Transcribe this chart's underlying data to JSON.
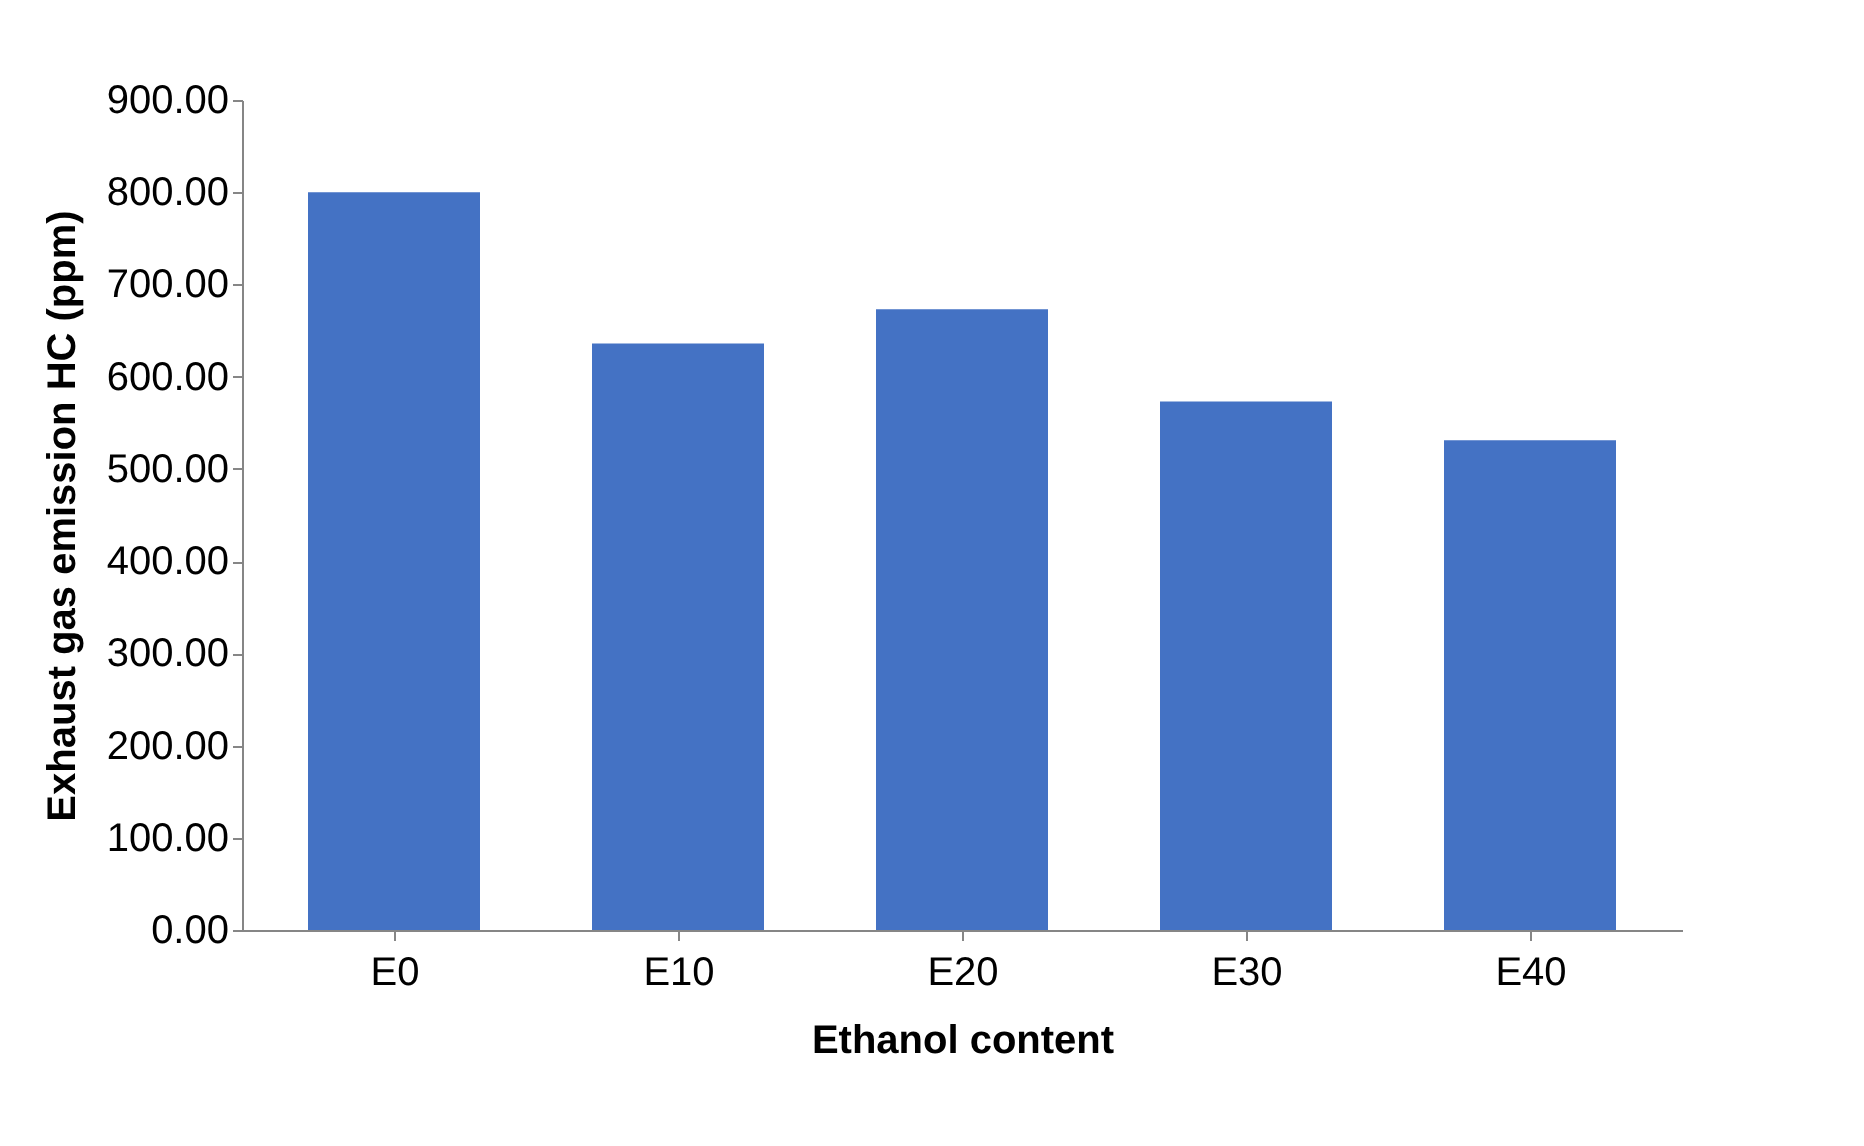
{
  "chart_data": {
    "type": "bar",
    "xlabel": "Ethanol content",
    "ylabel": "Exhaust gas emission HC (ppm)",
    "categories": [
      "E0",
      "E10",
      "E20",
      "E30",
      "E40"
    ],
    "values": [
      800,
      636,
      673,
      573,
      531
    ],
    "color": "#4472c4",
    "ylim": [
      0,
      900
    ],
    "yticks": [
      {
        "value": 0,
        "label": "0.00"
      },
      {
        "value": 100,
        "label": "100.00"
      },
      {
        "value": 200,
        "label": "200.00"
      },
      {
        "value": 300,
        "label": "300.00"
      },
      {
        "value": 400,
        "label": "400.00"
      },
      {
        "value": 500,
        "label": "500.00"
      },
      {
        "value": 600,
        "label": "600.00"
      },
      {
        "value": 700,
        "label": "700.00"
      },
      {
        "value": 800,
        "label": "800.00"
      },
      {
        "value": 900,
        "label": "900.00"
      }
    ],
    "grid": false
  }
}
